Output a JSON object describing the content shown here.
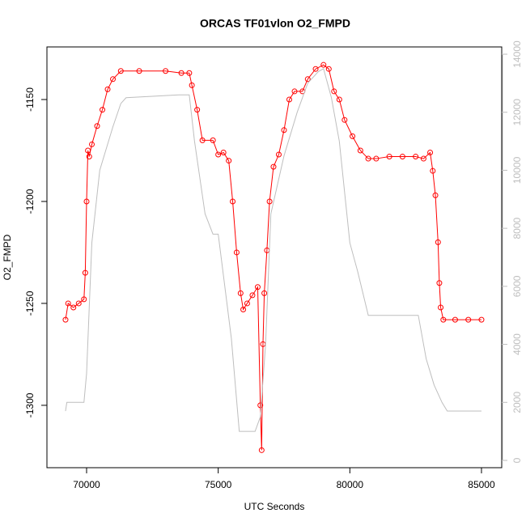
{
  "chart_data": {
    "type": "line",
    "title": "ORCAS TF01vlon O2_FMPD",
    "xlabel": "UTC Seconds",
    "ylabel": "O2_FMPD",
    "xlim": [
      68494,
      85769
    ],
    "xticks": [
      70000,
      75000,
      80000,
      85000
    ],
    "ylim": [
      -1330.6,
      -1124.2
    ],
    "yticks": [
      -1300,
      -1250,
      -1200,
      -1150
    ],
    "y2lim": [
      -251,
      14251
    ],
    "y2ticks": [
      0,
      2000,
      4000,
      6000,
      8000,
      10000,
      12000,
      14000
    ],
    "series": [
      {
        "color": "#ff0000",
        "markers": true,
        "x": [
          69200,
          69300,
          69500,
          69700,
          69900,
          69950,
          70000,
          70050,
          70100,
          70200,
          70400,
          70600,
          70800,
          71000,
          71300,
          72000,
          73000,
          73600,
          73900,
          74000,
          74200,
          74400,
          74800,
          75000,
          75200,
          75400,
          75550,
          75700,
          75850,
          75950,
          76100,
          76300,
          76500,
          76600,
          76650,
          76700,
          76750,
          76850,
          76950,
          77100,
          77300,
          77500,
          77700,
          77900,
          78200,
          78400,
          78700,
          79000,
          79200,
          79400,
          79600,
          79800,
          80100,
          80400,
          80700,
          81000,
          81500,
          82000,
          82500,
          82800,
          83050,
          83150,
          83250,
          83350,
          83400,
          83450,
          83550,
          84000,
          84500,
          85000
        ],
        "values": [
          -1258,
          -1250,
          -1252,
          -1250,
          -1248,
          -1235,
          -1200,
          -1175,
          -1178,
          -1172,
          -1163,
          -1155,
          -1145,
          -1140,
          -1136,
          -1136,
          -1136,
          -1137,
          -1137,
          -1143,
          -1155,
          -1170,
          -1170,
          -1177,
          -1176,
          -1180,
          -1200,
          -1225,
          -1245,
          -1253,
          -1250,
          -1246,
          -1242,
          -1300,
          -1322,
          -1270,
          -1245,
          -1224,
          -1200,
          -1183,
          -1177,
          -1165,
          -1150,
          -1146,
          -1146,
          -1140,
          -1135,
          -1133,
          -1135,
          -1146,
          -1150,
          -1160,
          -1168,
          -1175,
          -1179,
          -1179,
          -1178,
          -1178,
          -1178,
          -1179,
          -1176,
          -1185,
          -1197,
          -1220,
          -1240,
          -1252,
          -1258,
          -1258,
          -1258,
          -1258
        ]
      },
      {
        "color": "#bebebe",
        "axis": "y2",
        "markers": false,
        "x": [
          69200,
          69250,
          69900,
          70000,
          70200,
          70500,
          71000,
          71300,
          71500,
          73500,
          73900,
          74100,
          74500,
          74800,
          75000,
          75500,
          75800,
          76100,
          76400,
          76600,
          76800,
          77000,
          77500,
          78000,
          78400,
          78800,
          79000,
          79300,
          79600,
          80000,
          80300,
          80700,
          81000,
          82600,
          82900,
          83200,
          83500,
          83700,
          85000
        ],
        "values": [
          1700,
          2000,
          2000,
          3000,
          7500,
          10000,
          11500,
          12300,
          12500,
          12600,
          12600,
          11000,
          8500,
          7800,
          7800,
          4200,
          1000,
          1000,
          1000,
          1500,
          4000,
          8500,
          10500,
          12000,
          13000,
          13400,
          13500,
          12500,
          11000,
          7500,
          6500,
          5000,
          5000,
          5000,
          3500,
          2600,
          2000,
          1700,
          1700
        ]
      }
    ]
  }
}
